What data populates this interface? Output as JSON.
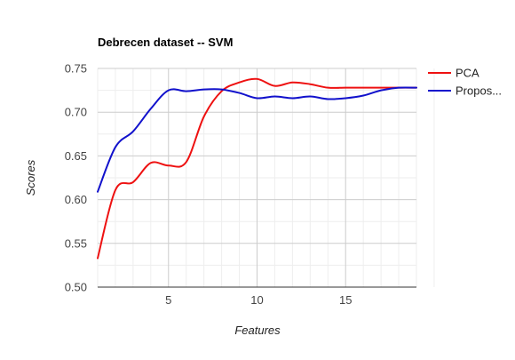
{
  "chart_data": {
    "type": "line",
    "title": "Debrecen dataset -- SVM",
    "xlabel": "Features",
    "ylabel": "Scores",
    "xlim": [
      1,
      19
    ],
    "ylim": [
      0.5,
      0.75
    ],
    "x_ticks": [
      5,
      10,
      15
    ],
    "x_tick_labels": [
      "5",
      "10",
      "15"
    ],
    "y_ticks": [
      0.5,
      0.55,
      0.6,
      0.65,
      0.7,
      0.75
    ],
    "y_tick_labels": [
      "0.50",
      "0.55",
      "0.60",
      "0.65",
      "0.70",
      "0.75"
    ],
    "grid": true,
    "legend_position": "right",
    "x": [
      1,
      2,
      3,
      4,
      5,
      6,
      7,
      8,
      9,
      10,
      11,
      12,
      13,
      14,
      15,
      16,
      17,
      18,
      19
    ],
    "series": [
      {
        "name": "PCA",
        "color": "#ee1111",
        "values": [
          0.533,
          0.611,
          0.62,
          0.642,
          0.639,
          0.643,
          0.695,
          0.724,
          0.734,
          0.738,
          0.73,
          0.734,
          0.732,
          0.728,
          0.728,
          0.728,
          0.728,
          0.728,
          0.728
        ]
      },
      {
        "name": "Propos...",
        "color": "#1111cc",
        "values": [
          0.609,
          0.66,
          0.678,
          0.704,
          0.725,
          0.724,
          0.726,
          0.726,
          0.722,
          0.716,
          0.718,
          0.716,
          0.718,
          0.715,
          0.716,
          0.719,
          0.725,
          0.728,
          0.728
        ]
      }
    ]
  }
}
